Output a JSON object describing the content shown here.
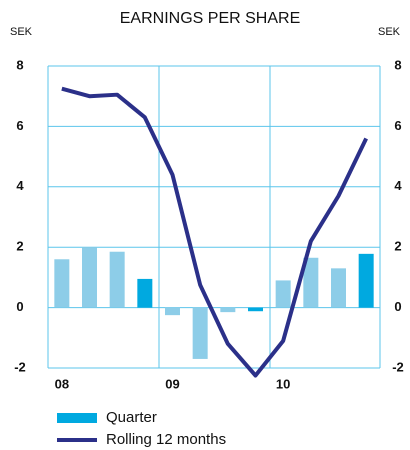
{
  "chart_data": {
    "type": "bar",
    "title": "EARNINGS PER SHARE",
    "y_label": "SEK",
    "y2_label": "SEK",
    "categories": [
      "08",
      null,
      null,
      null,
      "09",
      null,
      null,
      null,
      "10",
      null,
      null,
      null
    ],
    "series": [
      {
        "name": "Quarter",
        "type": "bar",
        "color": "#8dcde8",
        "colors": [
          "#8dcde8",
          "#8dcde8",
          "#8dcde8",
          "#00a9e0",
          "#8dcde8",
          "#8dcde8",
          "#8dcde8",
          "#00a9e0",
          "#8dcde8",
          "#8dcde8",
          "#8dcde8",
          "#00a9e0"
        ],
        "values": [
          1.6,
          2.0,
          1.85,
          0.95,
          -0.25,
          -1.7,
          -0.15,
          -0.12,
          0.9,
          1.65,
          1.3,
          1.78
        ]
      },
      {
        "name": "Rolling 12 months",
        "type": "line",
        "color": "#2b3089",
        "values": [
          7.25,
          7.0,
          7.05,
          6.3,
          4.4,
          0.75,
          -1.2,
          -2.25,
          -1.1,
          2.2,
          3.7,
          5.6
        ]
      }
    ],
    "ylim": [
      -2,
      8
    ],
    "yticks": [
      -2,
      0,
      2,
      4,
      6,
      8
    ],
    "grid": true
  }
}
